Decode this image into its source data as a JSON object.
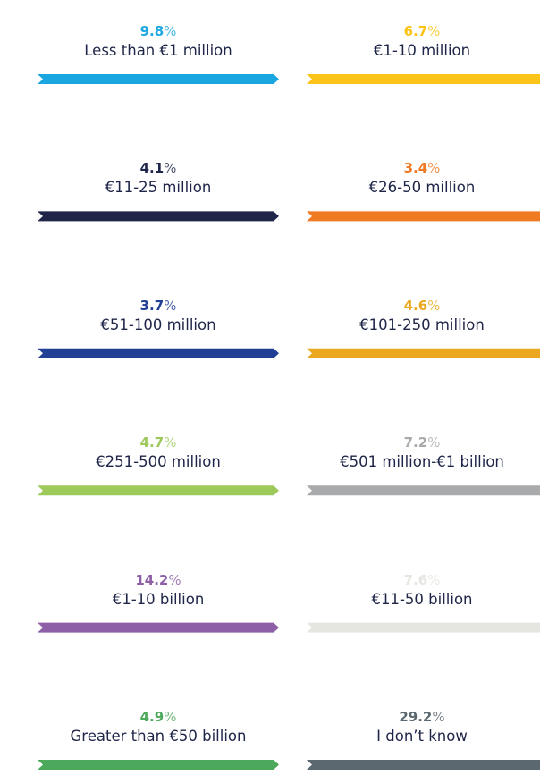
{
  "unit": "%",
  "items": [
    {
      "value": 9.8,
      "label": "Less than €1 million",
      "color": "#1aa7e0"
    },
    {
      "value": 6.7,
      "label": "€1-10 million",
      "color": "#fcc419"
    },
    {
      "value": 4.1,
      "label": "€11-25 million",
      "color": "#1e2548"
    },
    {
      "value": 3.4,
      "label": "€26-50 million",
      "color": "#f07a22"
    },
    {
      "value": 3.7,
      "label": "€51-100 million",
      "color": "#213f95"
    },
    {
      "value": 4.6,
      "label": "€101-250 million",
      "color": "#eba81f"
    },
    {
      "value": 4.7,
      "label": "€251-500 million",
      "color": "#9dc95b"
    },
    {
      "value": 7.2,
      "label": "€501 million-€1 billion",
      "color": "#a8aaab"
    },
    {
      "value": 14.2,
      "label": "€1-10 billion",
      "color": "#8c5fa6"
    },
    {
      "value": 7.6,
      "label": "€11-50 billion",
      "color": "#e6e6e1"
    },
    {
      "value": 4.9,
      "label": "Greater than €50 billion",
      "color": "#4ca85a"
    },
    {
      "value": 29.2,
      "label": "I don’t know",
      "color": "#5c6870"
    }
  ]
}
